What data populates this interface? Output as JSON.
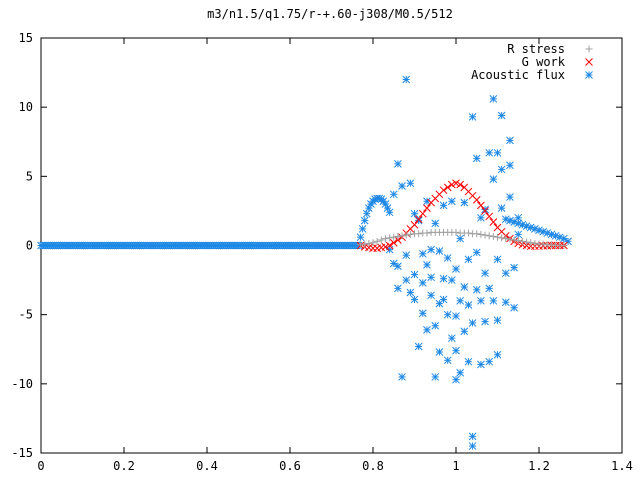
{
  "chart_data": {
    "type": "scatter",
    "title": "m3/n1.5/q1.75/r-+.60-j308/M0.5/512",
    "xlabel": "",
    "ylabel": "",
    "xlim": [
      0,
      1.4
    ],
    "ylim": [
      -15,
      15
    ],
    "xticks": [
      0,
      0.2,
      0.4,
      0.6,
      0.8,
      1,
      1.2,
      1.4
    ],
    "yticks": [
      -15,
      -10,
      -5,
      0,
      5,
      10,
      15
    ],
    "xtick_labels": [
      "0",
      "0.2",
      "0.4",
      "0.6",
      "0.8",
      "1",
      "1.2",
      "1.4"
    ],
    "ytick_labels": [
      "-15",
      "-10",
      "-5",
      "0",
      "5",
      "10",
      "15"
    ],
    "grid": false,
    "legend_position": "top-right",
    "series": [
      {
        "name": "R stress",
        "marker": "+",
        "color": "#a0a0a0",
        "points": [
          [
            0.77,
            0.05
          ],
          [
            0.78,
            0.1
          ],
          [
            0.79,
            0.15
          ],
          [
            0.8,
            0.2
          ],
          [
            0.81,
            0.3
          ],
          [
            0.82,
            0.4
          ],
          [
            0.83,
            0.5
          ],
          [
            0.84,
            0.55
          ],
          [
            0.85,
            0.6
          ],
          [
            0.86,
            0.65
          ],
          [
            0.87,
            0.7
          ],
          [
            0.88,
            0.75
          ],
          [
            0.89,
            0.8
          ],
          [
            0.9,
            0.85
          ],
          [
            0.91,
            0.85
          ],
          [
            0.92,
            0.9
          ],
          [
            0.93,
            0.9
          ],
          [
            0.94,
            0.95
          ],
          [
            0.95,
            0.95
          ],
          [
            0.96,
            0.95
          ],
          [
            0.97,
            0.95
          ],
          [
            0.98,
            0.95
          ],
          [
            0.99,
            0.95
          ],
          [
            1.0,
            0.95
          ],
          [
            1.01,
            0.9
          ],
          [
            1.02,
            0.9
          ],
          [
            1.03,
            0.9
          ],
          [
            1.04,
            0.85
          ],
          [
            1.05,
            0.85
          ],
          [
            1.06,
            0.8
          ],
          [
            1.07,
            0.75
          ],
          [
            1.08,
            0.7
          ],
          [
            1.09,
            0.65
          ],
          [
            1.1,
            0.6
          ],
          [
            1.11,
            0.55
          ],
          [
            1.12,
            0.5
          ],
          [
            1.13,
            0.45
          ],
          [
            1.14,
            0.4
          ],
          [
            1.15,
            0.35
          ],
          [
            1.16,
            0.3
          ],
          [
            1.17,
            0.25
          ],
          [
            1.18,
            0.2
          ],
          [
            1.19,
            0.15
          ],
          [
            1.2,
            0.1
          ],
          [
            1.21,
            0.1
          ],
          [
            1.22,
            0.05
          ],
          [
            1.23,
            0.05
          ],
          [
            1.24,
            0.02
          ],
          [
            1.25,
            0.01
          ],
          [
            1.26,
            0.0
          ]
        ]
      },
      {
        "name": "G work",
        "marker": "x",
        "color": "#ff0000",
        "points": [
          [
            0.77,
            0.0
          ],
          [
            0.78,
            -0.1
          ],
          [
            0.79,
            -0.15
          ],
          [
            0.8,
            -0.2
          ],
          [
            0.81,
            -0.2
          ],
          [
            0.82,
            -0.15
          ],
          [
            0.83,
            -0.1
          ],
          [
            0.84,
            0.0
          ],
          [
            0.85,
            0.2
          ],
          [
            0.86,
            0.4
          ],
          [
            0.87,
            0.6
          ],
          [
            0.88,
            0.9
          ],
          [
            0.89,
            1.2
          ],
          [
            0.9,
            1.5
          ],
          [
            0.91,
            1.9
          ],
          [
            0.92,
            2.3
          ],
          [
            0.93,
            2.7
          ],
          [
            0.94,
            3.1
          ],
          [
            0.95,
            3.4
          ],
          [
            0.96,
            3.7
          ],
          [
            0.97,
            4.0
          ],
          [
            0.98,
            4.2
          ],
          [
            0.99,
            4.4
          ],
          [
            1.0,
            4.5
          ],
          [
            1.01,
            4.4
          ],
          [
            1.02,
            4.2
          ],
          [
            1.03,
            3.9
          ],
          [
            1.04,
            3.6
          ],
          [
            1.05,
            3.3
          ],
          [
            1.06,
            2.9
          ],
          [
            1.07,
            2.5
          ],
          [
            1.08,
            2.1
          ],
          [
            1.09,
            1.7
          ],
          [
            1.1,
            1.3
          ],
          [
            1.11,
            1.0
          ],
          [
            1.12,
            0.7
          ],
          [
            1.13,
            0.5
          ],
          [
            1.14,
            0.3
          ],
          [
            1.15,
            0.15
          ],
          [
            1.16,
            0.05
          ],
          [
            1.17,
            0.0
          ],
          [
            1.18,
            -0.05
          ],
          [
            1.19,
            -0.05
          ],
          [
            1.2,
            -0.05
          ],
          [
            1.21,
            -0.03
          ],
          [
            1.22,
            -0.02
          ],
          [
            1.23,
            0.0
          ],
          [
            1.24,
            0.0
          ],
          [
            1.25,
            0.0
          ],
          [
            1.26,
            0.0
          ]
        ]
      },
      {
        "name": "Acoustic flux",
        "marker": "*",
        "color": "#1e88e5",
        "baseline": {
          "x_from": 0.0,
          "x_to": 0.765,
          "step": 0.005,
          "y": 0.0
        },
        "points": [
          [
            0.77,
            0.6
          ],
          [
            0.775,
            1.2
          ],
          [
            0.78,
            1.8
          ],
          [
            0.785,
            2.3
          ],
          [
            0.79,
            2.7
          ],
          [
            0.795,
            3.0
          ],
          [
            0.8,
            3.2
          ],
          [
            0.805,
            3.35
          ],
          [
            0.81,
            3.4
          ],
          [
            0.815,
            3.4
          ],
          [
            0.82,
            3.35
          ],
          [
            0.825,
            3.2
          ],
          [
            0.83,
            3.0
          ],
          [
            0.835,
            2.7
          ],
          [
            0.84,
            2.4
          ],
          [
            1.12,
            1.9
          ],
          [
            1.13,
            1.8
          ],
          [
            1.14,
            1.7
          ],
          [
            1.15,
            1.6
          ],
          [
            1.16,
            1.5
          ],
          [
            1.17,
            1.4
          ],
          [
            1.18,
            1.3
          ],
          [
            1.19,
            1.2
          ],
          [
            1.2,
            1.1
          ],
          [
            1.21,
            1.0
          ],
          [
            1.22,
            0.9
          ],
          [
            1.23,
            0.8
          ],
          [
            1.24,
            0.7
          ],
          [
            1.25,
            0.6
          ],
          [
            1.26,
            0.5
          ],
          [
            1.27,
            0.3
          ],
          [
            0.88,
            12.0
          ],
          [
            0.86,
            5.9
          ],
          [
            0.87,
            4.3
          ],
          [
            0.85,
            3.7
          ],
          [
            0.84,
            -0.3
          ],
          [
            0.85,
            -1.3
          ],
          [
            0.86,
            -1.5
          ],
          [
            0.86,
            -3.1
          ],
          [
            0.87,
            -9.5
          ],
          [
            0.88,
            -0.7
          ],
          [
            0.88,
            -2.5
          ],
          [
            0.89,
            -3.4
          ],
          [
            0.89,
            4.5
          ],
          [
            0.9,
            2.3
          ],
          [
            0.9,
            -2.1
          ],
          [
            0.9,
            -3.9
          ],
          [
            0.91,
            -7.3
          ],
          [
            0.91,
            1.8
          ],
          [
            0.92,
            -0.6
          ],
          [
            0.92,
            -2.7
          ],
          [
            0.92,
            -4.9
          ],
          [
            0.93,
            -6.1
          ],
          [
            0.93,
            -1.4
          ],
          [
            0.93,
            3.2
          ],
          [
            0.94,
            -0.3
          ],
          [
            0.94,
            -2.3
          ],
          [
            0.94,
            -3.6
          ],
          [
            0.95,
            -9.5
          ],
          [
            0.95,
            -5.8
          ],
          [
            0.95,
            1.6
          ],
          [
            0.96,
            -7.7
          ],
          [
            0.96,
            -4.2
          ],
          [
            0.96,
            -0.4
          ],
          [
            0.97,
            -3.9
          ],
          [
            0.97,
            -2.4
          ],
          [
            0.97,
            2.9
          ],
          [
            0.98,
            -8.3
          ],
          [
            0.98,
            -5.0
          ],
          [
            0.98,
            -0.9
          ],
          [
            0.99,
            -6.7
          ],
          [
            0.99,
            -2.5
          ],
          [
            0.99,
            3.2
          ],
          [
            1.0,
            -9.7
          ],
          [
            1.0,
            -7.6
          ],
          [
            1.0,
            -5.1
          ],
          [
            1.0,
            -1.7
          ],
          [
            1.01,
            -9.2
          ],
          [
            1.01,
            -4.0
          ],
          [
            1.01,
            0.5
          ],
          [
            1.02,
            -6.2
          ],
          [
            1.02,
            -3.0
          ],
          [
            1.02,
            3.1
          ],
          [
            1.03,
            -8.4
          ],
          [
            1.03,
            -4.3
          ],
          [
            1.03,
            -1.0
          ],
          [
            1.04,
            9.3
          ],
          [
            1.04,
            -13.8
          ],
          [
            1.04,
            -14.5
          ],
          [
            1.04,
            -5.6
          ],
          [
            1.05,
            6.3
          ],
          [
            1.05,
            -3.2
          ],
          [
            1.05,
            -0.5
          ],
          [
            1.06,
            -8.6
          ],
          [
            1.06,
            -4.0
          ],
          [
            1.06,
            2.0
          ],
          [
            1.07,
            -5.5
          ],
          [
            1.07,
            -2.0
          ],
          [
            1.07,
            2.6
          ],
          [
            1.08,
            6.7
          ],
          [
            1.08,
            -3.1
          ],
          [
            1.08,
            -8.4
          ],
          [
            1.09,
            10.6
          ],
          [
            1.09,
            -4.0
          ],
          [
            1.09,
            4.8
          ],
          [
            1.1,
            6.7
          ],
          [
            1.1,
            -7.9
          ],
          [
            1.1,
            -5.4
          ],
          [
            1.1,
            -1.0
          ],
          [
            1.11,
            9.4
          ],
          [
            1.11,
            5.5
          ],
          [
            1.11,
            2.7
          ],
          [
            1.12,
            -2.0
          ],
          [
            1.12,
            -4.1
          ],
          [
            1.13,
            7.6
          ],
          [
            1.13,
            5.8
          ],
          [
            1.13,
            3.5
          ],
          [
            1.14,
            -4.5
          ],
          [
            1.14,
            -1.6
          ],
          [
            1.15,
            2.0
          ],
          [
            1.15,
            0.8
          ]
        ]
      }
    ]
  }
}
